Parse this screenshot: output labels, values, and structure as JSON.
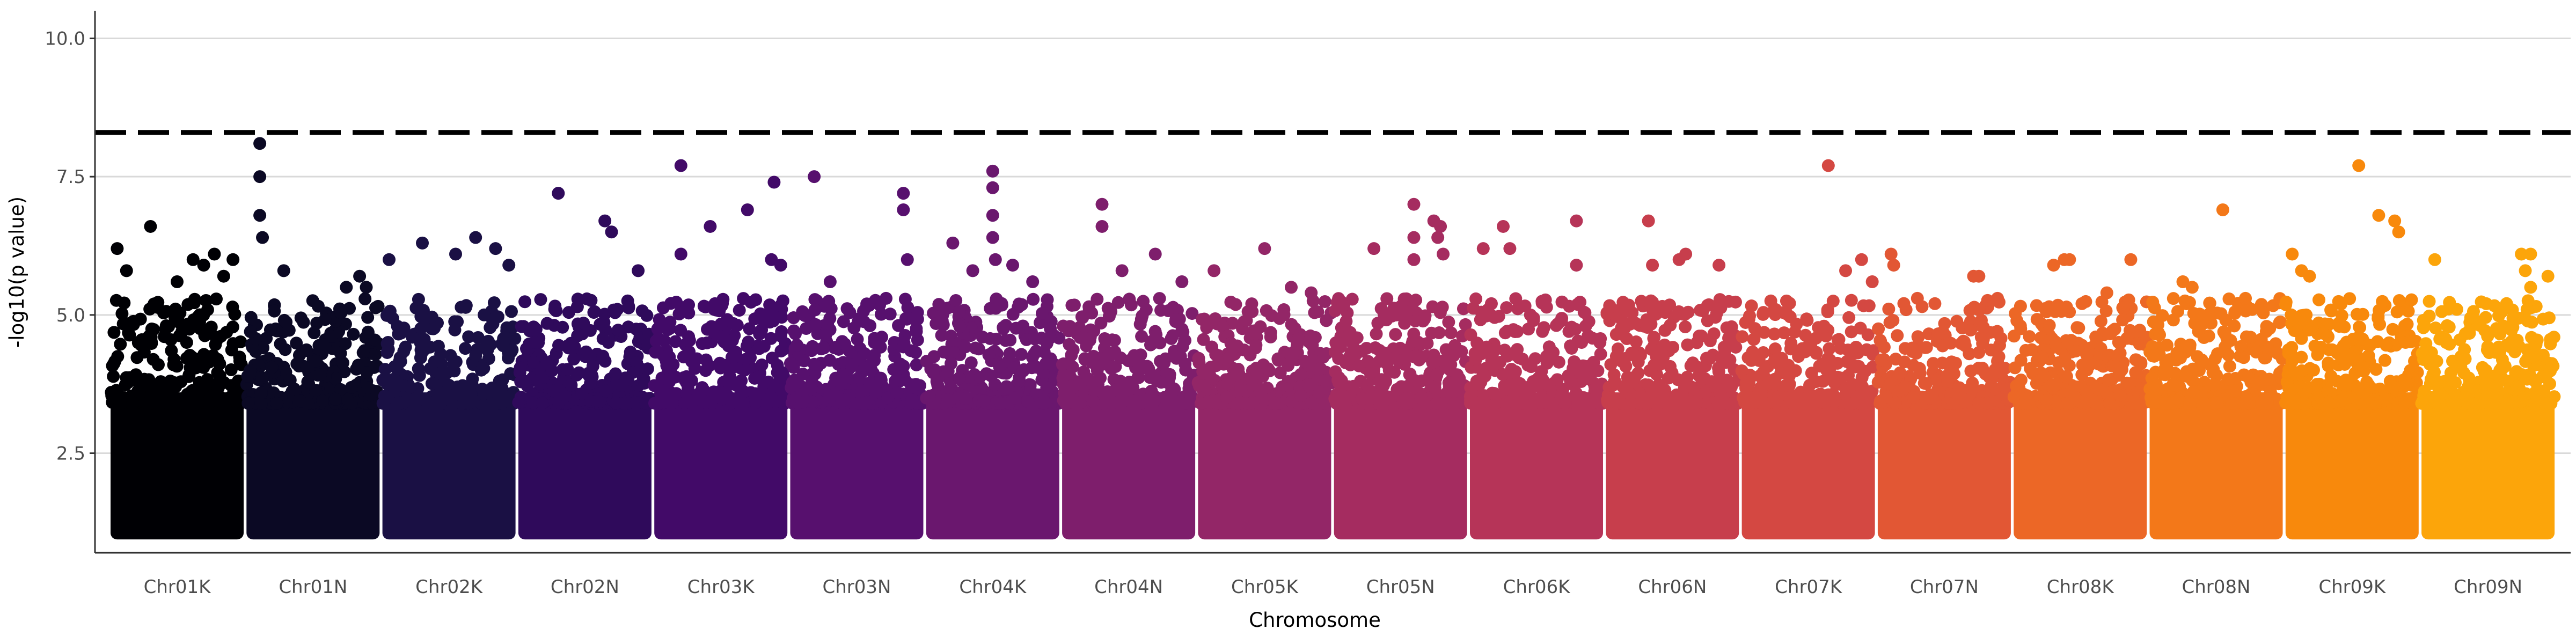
{
  "chart_data": {
    "type": "scatter",
    "title": "",
    "xlabel": "Chromosome",
    "ylabel": "-log10(p value)",
    "ylim": [
      0.7,
      10.5
    ],
    "yticks": [
      2.5,
      5.0,
      7.5,
      10.0
    ],
    "ytick_labels": [
      "2.5",
      "5.0",
      "7.5",
      "10.0"
    ],
    "grid": "horizontal-major",
    "legend": "none",
    "threshold": {
      "value": 8.3,
      "color": "#000000",
      "style": "dashed"
    },
    "categories": [
      "Chr01K",
      "Chr01N",
      "Chr02K",
      "Chr02N",
      "Chr03K",
      "Chr03N",
      "Chr04K",
      "Chr04N",
      "Chr05K",
      "Chr05N",
      "Chr06K",
      "Chr06N",
      "Chr07K",
      "Chr07N",
      "Chr08K",
      "Chr08N",
      "Chr09K",
      "Chr09N"
    ],
    "series": [
      {
        "category": "Chr01K",
        "color": "#000004",
        "min": 1.0,
        "top_points": [
          [
            0.05,
            6.2
          ],
          [
            0.12,
            5.8
          ],
          [
            0.3,
            6.6
          ],
          [
            0.5,
            5.6
          ],
          [
            0.62,
            6.0
          ],
          [
            0.7,
            5.9
          ],
          [
            0.78,
            6.1
          ],
          [
            0.85,
            5.7
          ],
          [
            0.92,
            6.0
          ]
        ]
      },
      {
        "category": "Chr01N",
        "color": "#0b0924",
        "min": 1.0,
        "top_points": [
          [
            0.1,
            8.1
          ],
          [
            0.1,
            7.5
          ],
          [
            0.1,
            6.8
          ],
          [
            0.12,
            6.4
          ],
          [
            0.28,
            5.8
          ],
          [
            0.75,
            5.5
          ],
          [
            0.85,
            5.7
          ],
          [
            0.9,
            5.5
          ]
        ]
      },
      {
        "category": "Chr02K",
        "color": "#1a1044",
        "min": 1.0,
        "top_points": [
          [
            0.05,
            6.0
          ],
          [
            0.3,
            6.3
          ],
          [
            0.55,
            6.1
          ],
          [
            0.7,
            6.4
          ],
          [
            0.85,
            6.2
          ],
          [
            0.95,
            5.9
          ]
        ]
      },
      {
        "category": "Chr02N",
        "color": "#2f0a5b",
        "min": 1.0,
        "top_points": [
          [
            0.3,
            7.2
          ],
          [
            0.65,
            6.7
          ],
          [
            0.7,
            6.5
          ],
          [
            0.9,
            5.8
          ]
        ]
      },
      {
        "category": "Chr03K",
        "color": "#420a68",
        "min": 1.0,
        "top_points": [
          [
            0.2,
            7.7
          ],
          [
            0.2,
            6.1
          ],
          [
            0.42,
            6.6
          ],
          [
            0.7,
            6.9
          ],
          [
            0.9,
            7.4
          ],
          [
            0.88,
            6.0
          ],
          [
            0.95,
            5.9
          ]
        ]
      },
      {
        "category": "Chr03N",
        "color": "#57106e",
        "min": 1.0,
        "top_points": [
          [
            0.18,
            7.5
          ],
          [
            0.3,
            5.6
          ],
          [
            0.85,
            7.2
          ],
          [
            0.85,
            6.9
          ],
          [
            0.88,
            6.0
          ],
          [
            0.72,
            5.3
          ]
        ]
      },
      {
        "category": "Chr04K",
        "color": "#6a176e",
        "min": 1.0,
        "top_points": [
          [
            0.2,
            6.3
          ],
          [
            0.35,
            5.8
          ],
          [
            0.5,
            7.6
          ],
          [
            0.5,
            7.3
          ],
          [
            0.5,
            6.8
          ],
          [
            0.5,
            6.4
          ],
          [
            0.52,
            6.0
          ],
          [
            0.65,
            5.9
          ],
          [
            0.8,
            5.6
          ]
        ]
      },
      {
        "category": "Chr04N",
        "color": "#7e1e6c",
        "min": 1.0,
        "top_points": [
          [
            0.3,
            7.0
          ],
          [
            0.3,
            6.6
          ],
          [
            0.45,
            5.8
          ],
          [
            0.7,
            6.1
          ],
          [
            0.9,
            5.6
          ]
        ]
      },
      {
        "category": "Chr05K",
        "color": "#932667",
        "min": 1.0,
        "top_points": [
          [
            0.12,
            5.8
          ],
          [
            0.5,
            6.2
          ],
          [
            0.7,
            5.5
          ],
          [
            0.85,
            5.4
          ]
        ]
      },
      {
        "category": "Chr05N",
        "color": "#a52c60",
        "min": 1.0,
        "top_points": [
          [
            0.3,
            6.2
          ],
          [
            0.6,
            7.0
          ],
          [
            0.6,
            6.4
          ],
          [
            0.6,
            6.0
          ],
          [
            0.75,
            6.7
          ],
          [
            0.78,
            6.4
          ],
          [
            0.8,
            6.6
          ],
          [
            0.82,
            6.1
          ]
        ]
      },
      {
        "category": "Chr06K",
        "color": "#b63458",
        "min": 1.0,
        "top_points": [
          [
            0.1,
            6.2
          ],
          [
            0.25,
            6.6
          ],
          [
            0.3,
            6.2
          ],
          [
            0.8,
            6.7
          ],
          [
            0.8,
            5.9
          ]
        ]
      },
      {
        "category": "Chr06N",
        "color": "#c73e4c",
        "min": 1.0,
        "top_points": [
          [
            0.32,
            6.7
          ],
          [
            0.35,
            5.9
          ],
          [
            0.55,
            6.0
          ],
          [
            0.6,
            6.1
          ],
          [
            0.85,
            5.9
          ]
        ]
      },
      {
        "category": "Chr07K",
        "color": "#d44842",
        "min": 1.0,
        "top_points": [
          [
            0.65,
            7.7
          ],
          [
            0.9,
            6.0
          ],
          [
            0.78,
            5.8
          ],
          [
            0.98,
            5.6
          ]
        ]
      },
      {
        "category": "Chr07N",
        "color": "#e25734",
        "min": 1.0,
        "top_points": [
          [
            0.1,
            6.1
          ],
          [
            0.12,
            5.9
          ],
          [
            0.72,
            5.7
          ],
          [
            0.76,
            5.7
          ],
          [
            0.9,
            5.3
          ]
        ]
      },
      {
        "category": "Chr08K",
        "color": "#ec6726",
        "min": 1.0,
        "top_points": [
          [
            0.3,
            5.9
          ],
          [
            0.38,
            6.0
          ],
          [
            0.42,
            6.0
          ],
          [
            0.88,
            6.0
          ],
          [
            0.7,
            5.4
          ]
        ]
      },
      {
        "category": "Chr08N",
        "color": "#f37819",
        "min": 1.0,
        "top_points": [
          [
            0.25,
            5.6
          ],
          [
            0.32,
            5.5
          ],
          [
            0.55,
            6.9
          ],
          [
            0.72,
            5.3
          ]
        ]
      },
      {
        "category": "Chr09K",
        "color": "#f8890c",
        "min": 1.0,
        "top_points": [
          [
            0.05,
            6.1
          ],
          [
            0.12,
            5.8
          ],
          [
            0.18,
            5.7
          ],
          [
            0.55,
            7.7
          ],
          [
            0.7,
            6.8
          ],
          [
            0.82,
            6.7
          ],
          [
            0.85,
            6.5
          ]
        ]
      },
      {
        "category": "Chr09N",
        "color": "#fca50a",
        "min": 1.0,
        "top_points": [
          [
            0.1,
            6.0
          ],
          [
            0.75,
            6.1
          ],
          [
            0.82,
            6.1
          ],
          [
            0.78,
            5.8
          ],
          [
            0.95,
            5.7
          ],
          [
            0.82,
            5.5
          ]
        ]
      }
    ]
  }
}
